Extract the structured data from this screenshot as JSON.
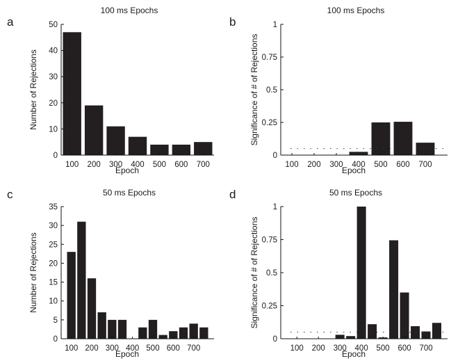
{
  "chart_data": [
    {
      "panel": "a",
      "type": "bar",
      "title": "100 ms Epochs",
      "xlabel": "Epoch",
      "ylabel": "Number of Rejections",
      "categories": [
        "100",
        "200",
        "300",
        "400",
        "500",
        "600",
        "700"
      ],
      "values": [
        47,
        19,
        11,
        7,
        4,
        4,
        5
      ],
      "ylim": [
        0,
        50
      ],
      "yticks": [
        "0",
        "10",
        "20",
        "30",
        "40",
        "50"
      ],
      "bar_color": "#231f20"
    },
    {
      "panel": "b",
      "type": "bar",
      "title": "100 ms Epochs",
      "xlabel": "Epoch",
      "ylabel": "Significance of # of Rejections",
      "categories": [
        "100",
        "200",
        "300",
        "400",
        "500",
        "600",
        "700"
      ],
      "values": [
        0,
        0,
        0,
        0.025,
        0.25,
        0.255,
        0.095
      ],
      "ylim": [
        0,
        1
      ],
      "yticks": [
        "0",
        "0.25",
        "0.5",
        "0.75",
        "1"
      ],
      "threshold": 0.05,
      "bar_color": "#231f20"
    },
    {
      "panel": "c",
      "type": "bar",
      "title": "50 ms Epochs",
      "xlabel": "Epoch",
      "ylabel": "Number of Rejections",
      "categories": [
        "100",
        "150",
        "200",
        "250",
        "300",
        "350",
        "400",
        "450",
        "500",
        "550",
        "600",
        "650",
        "700",
        "750"
      ],
      "tick_labels": [
        "100",
        "200",
        "300",
        "400",
        "500",
        "600",
        "700"
      ],
      "values": [
        23,
        31,
        16,
        7,
        5,
        5,
        0,
        3,
        5,
        1,
        2,
        3,
        4,
        3
      ],
      "ylim": [
        0,
        35
      ],
      "yticks": [
        "0",
        "5",
        "10",
        "15",
        "20",
        "25",
        "30",
        "35"
      ],
      "bar_color": "#231f20"
    },
    {
      "panel": "d",
      "type": "bar",
      "title": "50 ms Epochs",
      "xlabel": "Epoch",
      "ylabel": "Significance of # of Rejections",
      "categories": [
        "100",
        "150",
        "200",
        "250",
        "300",
        "350",
        "400",
        "450",
        "500",
        "550",
        "600",
        "650",
        "700",
        "750"
      ],
      "tick_labels": [
        "100",
        "200",
        "300",
        "400",
        "500",
        "600",
        "700"
      ],
      "values": [
        0,
        0,
        0,
        0,
        0.03,
        0.02,
        1.0,
        0.11,
        0.01,
        0.745,
        0.35,
        0.095,
        0.055,
        0.12
      ],
      "ylim": [
        0,
        1
      ],
      "yticks": [
        "0",
        "0.25",
        "0.5",
        "0.75",
        "1"
      ],
      "threshold": 0.05,
      "bar_color": "#231f20"
    }
  ]
}
